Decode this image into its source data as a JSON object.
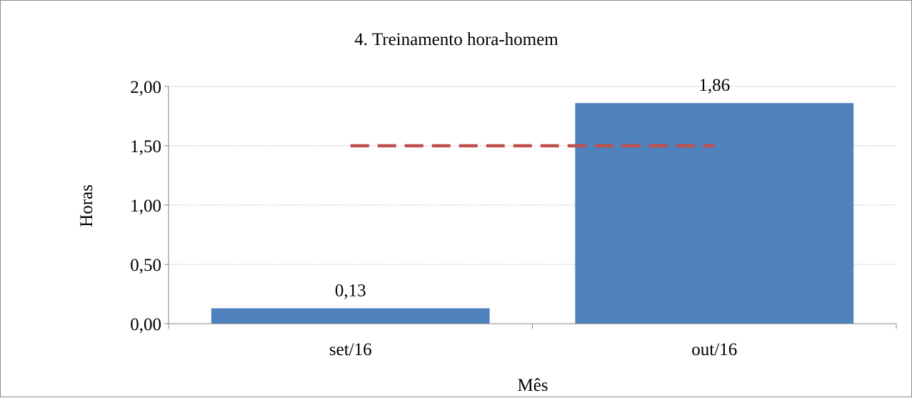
{
  "chart_data": {
    "type": "bar",
    "title": "4. Treinamento  hora-homem",
    "xlabel": "Mês",
    "ylabel": "Horas",
    "categories": [
      "set/16",
      "out/16"
    ],
    "series": [
      {
        "values": [
          0.13,
          1.86
        ],
        "labels": [
          "0,13",
          "1,86"
        ],
        "color": "#4f81bd"
      }
    ],
    "target": {
      "value": 1.5,
      "style": "dashed",
      "color": "#c0504d"
    },
    "ylim": [
      0,
      2
    ],
    "yticks": [
      0,
      0.5,
      1,
      1.5,
      2
    ],
    "ytick_labels": [
      "0,00",
      "0,50",
      "1,00",
      "1,50",
      "2,00"
    ],
    "grid": true,
    "legend": "none"
  }
}
